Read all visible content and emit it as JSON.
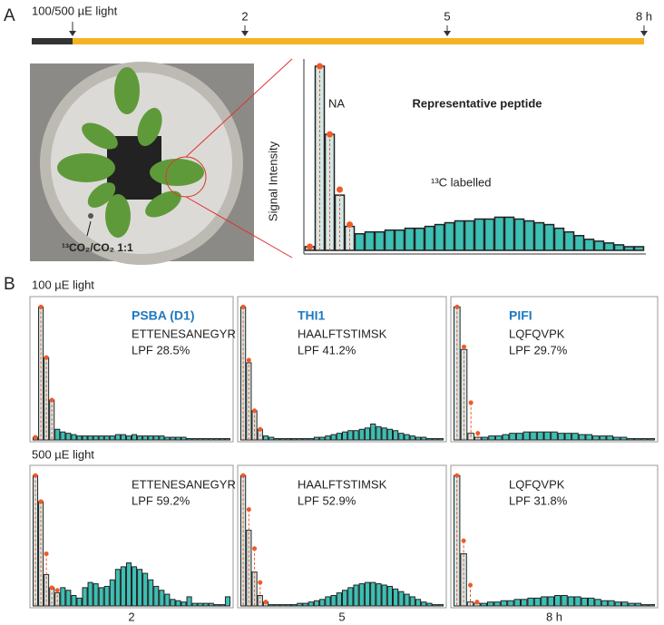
{
  "panels": [
    "A",
    "B"
  ],
  "timeline": {
    "start_label": "100/500 µE light",
    "labels": [
      "2",
      "5",
      "8 h"
    ]
  },
  "photo_label": "¹³CO₂/CO₂ 1:1",
  "rows": [
    "100 µE light",
    "500 µE light"
  ],
  "x_labels": [
    "2",
    "5",
    "8 h"
  ],
  "chart_data": [
    {
      "type": "bar",
      "title": "Representative peptide",
      "y_label": "Signal Intensity",
      "annotations": [
        "NA",
        "¹³C labelled"
      ],
      "ylim": [
        0,
        100
      ],
      "values": [
        2,
        100,
        63,
        30,
        13,
        9,
        10,
        10,
        11,
        11,
        12,
        12,
        13,
        14,
        15,
        16,
        16,
        17,
        17,
        18,
        18,
        17,
        16,
        15,
        14,
        12,
        10,
        8,
        6,
        5,
        4,
        3,
        2,
        2
      ],
      "marker_values": [
        2,
        100,
        63,
        33,
        14,
        null,
        null,
        null,
        null,
        null,
        null,
        null,
        null,
        null,
        null,
        null,
        null,
        null,
        null,
        null,
        null,
        null,
        null,
        null,
        null,
        null,
        null,
        null,
        null,
        null,
        null,
        null,
        null,
        null
      ]
    },
    {
      "type": "bar",
      "title": "PSBA (D1)",
      "peptide": "ETTENESANEGYR",
      "lpf_label": "LPF 28.5%",
      "ylim": [
        0,
        105
      ],
      "values": [
        2,
        100,
        62,
        30,
        8,
        6,
        5,
        4,
        3,
        3,
        3,
        3,
        3,
        3,
        3,
        4,
        4,
        3,
        4,
        3,
        3,
        3,
        3,
        3,
        2,
        2,
        2,
        2,
        1,
        1,
        1,
        1,
        1,
        1,
        1,
        1
      ],
      "marker_values": [
        2,
        100,
        62,
        30,
        null,
        null,
        null,
        null,
        null,
        null,
        null,
        null,
        null,
        null,
        null,
        null,
        null,
        null,
        null,
        null,
        null,
        null,
        null,
        null,
        null,
        null,
        null,
        null,
        null,
        null,
        null,
        null,
        null,
        null,
        null,
        null
      ]
    },
    {
      "type": "bar",
      "title": "THI1",
      "peptide": "HAALFTSTIMSK",
      "lpf_label": "LPF 41.2%",
      "ylim": [
        0,
        105
      ],
      "values": [
        100,
        58,
        22,
        8,
        3,
        2,
        1,
        1,
        1,
        1,
        1,
        1,
        1,
        2,
        2,
        3,
        4,
        5,
        6,
        7,
        7,
        8,
        9,
        12,
        10,
        9,
        8,
        7,
        5,
        4,
        3,
        2,
        2,
        1,
        1,
        1
      ],
      "marker_values": [
        100,
        60,
        22,
        8,
        null,
        null,
        null,
        null,
        null,
        null,
        null,
        null,
        null,
        null,
        null,
        null,
        null,
        null,
        null,
        null,
        null,
        null,
        null,
        null,
        null,
        null,
        null,
        null,
        null,
        null,
        null,
        null,
        null,
        null,
        null,
        null
      ]
    },
    {
      "type": "bar",
      "title": "PIFI",
      "peptide": "LQFQVPK",
      "lpf_label": "LPF 29.7%",
      "ylim": [
        0,
        105
      ],
      "values": [
        100,
        68,
        5,
        2,
        2,
        3,
        3,
        4,
        5,
        5,
        6,
        6,
        6,
        6,
        6,
        5,
        5,
        5,
        4,
        4,
        3,
        3,
        3,
        2,
        2,
        1,
        1,
        1,
        1
      ],
      "marker_values": [
        100,
        70,
        28,
        5,
        null,
        null,
        null,
        null,
        null,
        null,
        null,
        null,
        null,
        null,
        null,
        null,
        null,
        null,
        null,
        null,
        null,
        null,
        null,
        null,
        null,
        null,
        null,
        null,
        null
      ]
    },
    {
      "type": "bar",
      "peptide": "ETTENESANEGYR",
      "lpf_label": "LPF 59.2%",
      "ylim": [
        0,
        105
      ],
      "values": [
        100,
        80,
        24,
        14,
        10,
        14,
        12,
        8,
        6,
        14,
        18,
        17,
        14,
        15,
        20,
        28,
        30,
        33,
        30,
        28,
        25,
        20,
        15,
        12,
        9,
        5,
        4,
        3,
        7,
        2,
        2,
        2,
        2,
        1,
        1,
        7
      ],
      "marker_values": [
        100,
        80,
        40,
        14,
        12,
        null,
        null,
        null,
        null,
        null,
        null,
        null,
        null,
        null,
        null,
        null,
        null,
        null,
        null,
        null,
        null,
        null,
        null,
        null,
        null,
        null,
        null,
        null,
        null,
        null,
        null,
        null,
        null,
        null,
        null,
        null
      ]
    },
    {
      "type": "bar",
      "peptide": "HAALFTSTIMSK",
      "lpf_label": "LPF 52.9%",
      "ylim": [
        0,
        105
      ],
      "values": [
        100,
        58,
        26,
        8,
        3,
        1,
        1,
        1,
        1,
        1,
        2,
        2,
        3,
        4,
        5,
        7,
        8,
        10,
        12,
        14,
        16,
        17,
        18,
        18,
        17,
        16,
        15,
        13,
        11,
        9,
        7,
        5,
        3,
        2,
        1,
        1
      ],
      "marker_values": [
        100,
        74,
        44,
        18,
        3,
        null,
        null,
        null,
        null,
        null,
        null,
        null,
        null,
        null,
        null,
        null,
        null,
        null,
        null,
        null,
        null,
        null,
        null,
        null,
        null,
        null,
        null,
        null,
        null,
        null,
        null,
        null,
        null,
        null,
        null,
        null
      ]
    },
    {
      "type": "bar",
      "peptide": "LQFQVPK",
      "lpf_label": "LPF 31.8%",
      "ylim": [
        0,
        105
      ],
      "values": [
        100,
        40,
        3,
        2,
        2,
        3,
        3,
        4,
        4,
        5,
        5,
        6,
        6,
        7,
        7,
        8,
        8,
        7,
        7,
        6,
        6,
        5,
        4,
        4,
        3,
        3,
        2,
        2,
        1,
        1
      ],
      "marker_values": [
        100,
        50,
        16,
        3,
        null,
        null,
        null,
        null,
        null,
        null,
        null,
        null,
        null,
        null,
        null,
        null,
        null,
        null,
        null,
        null,
        null,
        null,
        null,
        null,
        null,
        null,
        null,
        null,
        null,
        null
      ]
    }
  ]
}
